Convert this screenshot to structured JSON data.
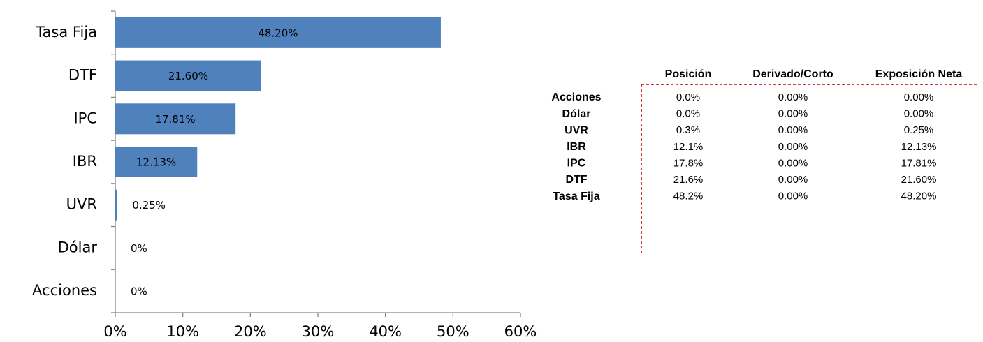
{
  "chart_data": {
    "type": "bar",
    "orientation": "horizontal",
    "categories": [
      "Tasa Fija",
      "DTF",
      "IPC",
      "IBR",
      "UVR",
      "Dólar",
      "Acciones"
    ],
    "values": [
      48.2,
      21.6,
      17.81,
      12.13,
      0.25,
      0,
      0
    ],
    "value_labels": [
      "48.20%",
      "21.60%",
      "17.81%",
      "12.13%",
      "0.25%",
      "0%",
      "0%"
    ],
    "color": "#4f81bd",
    "xlim": [
      0,
      60
    ],
    "xticks": [
      {
        "value": 0,
        "label": "0%"
      },
      {
        "value": 10,
        "label": "10%"
      },
      {
        "value": 20,
        "label": "20%"
      },
      {
        "value": 30,
        "label": "30%"
      },
      {
        "value": 40,
        "label": "40%"
      },
      {
        "value": 50,
        "label": "50%"
      },
      {
        "value": 60,
        "label": "60%"
      }
    ],
    "grid": false
  },
  "table": {
    "columns": [
      "Posición",
      "Derivado/Corto",
      "Exposición Neta"
    ],
    "rows": [
      {
        "label": "Acciones",
        "cells": [
          "0.0%",
          "0.00%",
          "0.00%"
        ]
      },
      {
        "label": "Dólar",
        "cells": [
          "0.0%",
          "0.00%",
          "0.00%"
        ]
      },
      {
        "label": "UVR",
        "cells": [
          "0.3%",
          "0.00%",
          "0.25%"
        ]
      },
      {
        "label": "IBR",
        "cells": [
          "12.1%",
          "0.00%",
          "12.13%"
        ]
      },
      {
        "label": "IPC",
        "cells": [
          "17.8%",
          "0.00%",
          "17.81%"
        ]
      },
      {
        "label": "DTF",
        "cells": [
          "21.6%",
          "0.00%",
          "21.60%"
        ]
      },
      {
        "label": "Tasa Fija",
        "cells": [
          "48.2%",
          "0.00%",
          "48.20%"
        ]
      }
    ]
  }
}
